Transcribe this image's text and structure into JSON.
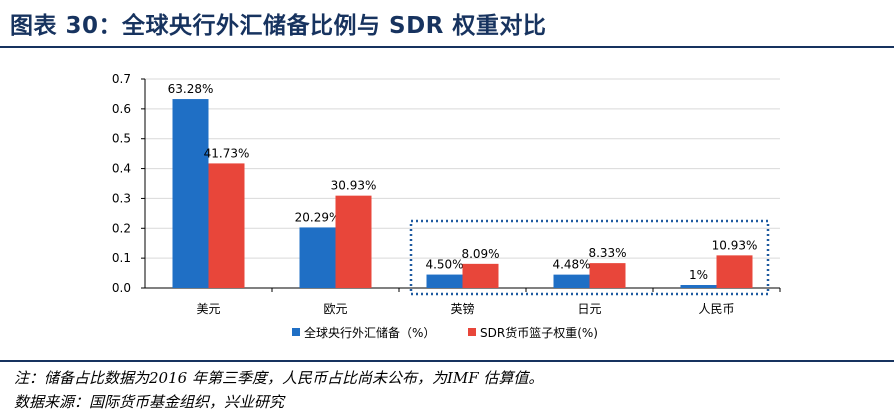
{
  "figure": {
    "title": "图表 30：全球央行外汇储备比例与 SDR 权重对比",
    "note": "注：储备占比数据为2016 年第三季度，人民币占比尚未公布，为IMF 估算值。",
    "source": "数据来源：国际货币基金组织，兴业研究"
  },
  "chart_data": {
    "type": "bar",
    "categories": [
      "美元",
      "欧元",
      "英镑",
      "日元",
      "人民币"
    ],
    "series": [
      {
        "name": "全球央行外汇储备（%）",
        "color": "#1f6fc5",
        "values": [
          0.6328,
          0.2029,
          0.045,
          0.0448,
          0.01
        ],
        "labels": [
          "63.28%",
          "20.29%",
          "4.50%",
          "4.48%",
          "1%"
        ]
      },
      {
        "name": "SDR货币篮子权重(%)",
        "color": "#e8463a",
        "values": [
          0.4173,
          0.3093,
          0.0809,
          0.0833,
          0.1093
        ],
        "labels": [
          "41.73%",
          "30.93%",
          "8.09%",
          "8.33%",
          "10.93%"
        ]
      }
    ],
    "ylim": [
      0,
      0.7
    ],
    "yticks": [
      0.0,
      0.1,
      0.2,
      0.3,
      0.4,
      0.5,
      0.6,
      0.7
    ],
    "ytick_labels": [
      "0.0",
      "0.1",
      "0.2",
      "0.3",
      "0.4",
      "0.5",
      "0.6",
      "0.7"
    ],
    "grid": true,
    "highlight_box": {
      "categories": [
        "英镑",
        "日元",
        "人民币"
      ],
      "style": "dotted",
      "color": "#1f5aa0"
    },
    "legend_position": "bottom"
  }
}
